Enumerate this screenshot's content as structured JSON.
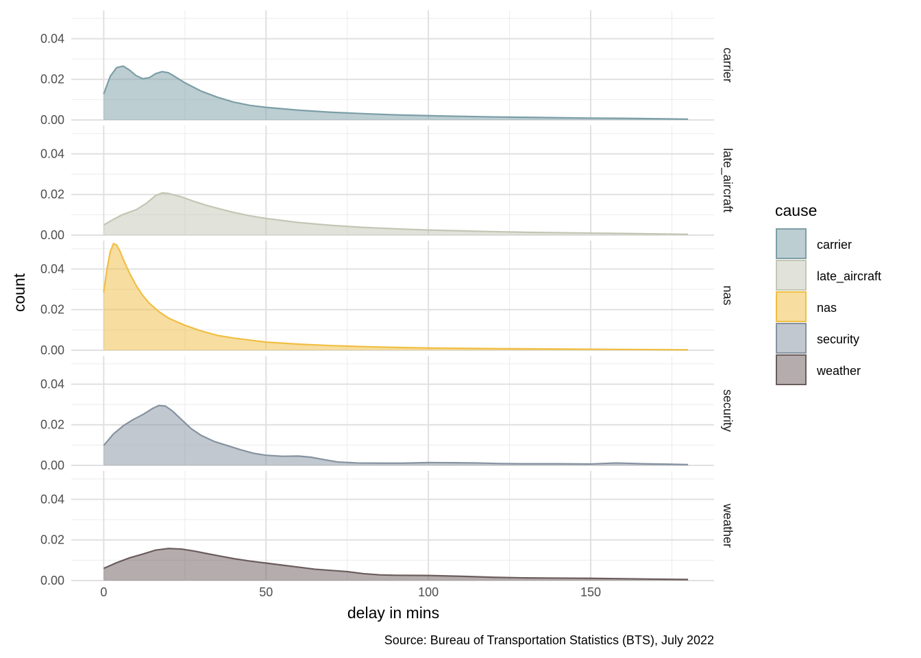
{
  "chart_data": {
    "type": "area",
    "facet": "rows",
    "xlabel": "delay in mins",
    "ylabel": "count",
    "caption": "Source: Bureau of Transportation Statistics (BTS), July 2022",
    "legend_title": "cause",
    "legend_position": "right",
    "grid": true,
    "xlim": [
      -10,
      188
    ],
    "ylim": [
      0,
      0.054
    ],
    "x_ticks": [
      0,
      50,
      100,
      150
    ],
    "x_tick_labels": [
      "0",
      "50",
      "100",
      "150"
    ],
    "y_ticks": [
      0,
      0.02,
      0.04
    ],
    "y_tick_labels": [
      "0.00",
      "0.02",
      "0.04"
    ],
    "series": [
      {
        "name": "carrier",
        "color": "#7b9ea6",
        "points": [
          [
            0,
            0.0128
          ],
          [
            2,
            0.0215
          ],
          [
            4,
            0.0258
          ],
          [
            6,
            0.0265
          ],
          [
            8,
            0.0245
          ],
          [
            10,
            0.0218
          ],
          [
            12,
            0.0203
          ],
          [
            14,
            0.0208
          ],
          [
            16,
            0.0228
          ],
          [
            18,
            0.0238
          ],
          [
            20,
            0.0232
          ],
          [
            22,
            0.0213
          ],
          [
            25,
            0.0183
          ],
          [
            30,
            0.0142
          ],
          [
            35,
            0.0112
          ],
          [
            40,
            0.0088
          ],
          [
            45,
            0.0072
          ],
          [
            50,
            0.0062
          ],
          [
            60,
            0.0048
          ],
          [
            70,
            0.0038
          ],
          [
            80,
            0.0031
          ],
          [
            90,
            0.0025
          ],
          [
            100,
            0.0021
          ],
          [
            110,
            0.0018
          ],
          [
            120,
            0.0015
          ],
          [
            130,
            0.0013
          ],
          [
            140,
            0.0011
          ],
          [
            150,
            0.0009
          ],
          [
            160,
            0.0008
          ],
          [
            170,
            0.0006
          ],
          [
            180,
            0.0004
          ]
        ]
      },
      {
        "name": "late_aircraft",
        "color": "#c3c6b4",
        "points": [
          [
            0,
            0.005
          ],
          [
            3,
            0.0078
          ],
          [
            6,
            0.0102
          ],
          [
            10,
            0.0125
          ],
          [
            13,
            0.0155
          ],
          [
            16,
            0.0195
          ],
          [
            18,
            0.0208
          ],
          [
            20,
            0.0205
          ],
          [
            24,
            0.0188
          ],
          [
            28,
            0.0165
          ],
          [
            32,
            0.0145
          ],
          [
            36,
            0.0128
          ],
          [
            40,
            0.0112
          ],
          [
            45,
            0.0095
          ],
          [
            50,
            0.0082
          ],
          [
            60,
            0.0062
          ],
          [
            70,
            0.0048
          ],
          [
            80,
            0.0038
          ],
          [
            90,
            0.0031
          ],
          [
            100,
            0.0025
          ],
          [
            110,
            0.0021
          ],
          [
            120,
            0.0017
          ],
          [
            130,
            0.0014
          ],
          [
            140,
            0.0012
          ],
          [
            150,
            0.001
          ],
          [
            160,
            0.0008
          ],
          [
            170,
            0.0006
          ],
          [
            180,
            0.0004
          ]
        ]
      },
      {
        "name": "nas",
        "color": "#f0be42",
        "points": [
          [
            0,
            0.0285
          ],
          [
            1,
            0.04
          ],
          [
            2,
            0.0485
          ],
          [
            3,
            0.0525
          ],
          [
            4,
            0.0518
          ],
          [
            5,
            0.0488
          ],
          [
            6,
            0.0448
          ],
          [
            8,
            0.0378
          ],
          [
            10,
            0.0318
          ],
          [
            12,
            0.027
          ],
          [
            14,
            0.0232
          ],
          [
            17,
            0.019
          ],
          [
            20,
            0.0158
          ],
          [
            25,
            0.0123
          ],
          [
            30,
            0.0095
          ],
          [
            35,
            0.0073
          ],
          [
            40,
            0.006
          ],
          [
            45,
            0.005
          ],
          [
            50,
            0.004
          ],
          [
            60,
            0.003
          ],
          [
            70,
            0.0023
          ],
          [
            80,
            0.0018
          ],
          [
            90,
            0.0014
          ],
          [
            100,
            0.0011
          ],
          [
            120,
            0.0008
          ],
          [
            140,
            0.0006
          ],
          [
            160,
            0.0004
          ],
          [
            180,
            0.0002
          ]
        ]
      },
      {
        "name": "security",
        "color": "#8592a0",
        "points": [
          [
            0,
            0.0098
          ],
          [
            3,
            0.0155
          ],
          [
            6,
            0.0195
          ],
          [
            9,
            0.0225
          ],
          [
            12,
            0.025
          ],
          [
            15,
            0.028
          ],
          [
            17,
            0.0295
          ],
          [
            19,
            0.0292
          ],
          [
            21,
            0.027
          ],
          [
            24,
            0.0225
          ],
          [
            27,
            0.018
          ],
          [
            30,
            0.0148
          ],
          [
            34,
            0.0118
          ],
          [
            38,
            0.0098
          ],
          [
            42,
            0.0078
          ],
          [
            46,
            0.006
          ],
          [
            50,
            0.005
          ],
          [
            55,
            0.0045
          ],
          [
            60,
            0.0046
          ],
          [
            64,
            0.004
          ],
          [
            68,
            0.0028
          ],
          [
            72,
            0.0017
          ],
          [
            78,
            0.0012
          ],
          [
            85,
            0.0011
          ],
          [
            92,
            0.0011
          ],
          [
            100,
            0.0014
          ],
          [
            108,
            0.0013
          ],
          [
            115,
            0.0012
          ],
          [
            122,
            0.0009
          ],
          [
            130,
            0.0008
          ],
          [
            140,
            0.0008
          ],
          [
            150,
            0.0007
          ],
          [
            158,
            0.0012
          ],
          [
            166,
            0.0008
          ],
          [
            174,
            0.0006
          ],
          [
            180,
            0.0004
          ]
        ]
      },
      {
        "name": "weather",
        "color": "#6b5c5c",
        "points": [
          [
            0,
            0.006
          ],
          [
            4,
            0.0088
          ],
          [
            8,
            0.0112
          ],
          [
            12,
            0.013
          ],
          [
            16,
            0.015
          ],
          [
            20,
            0.0158
          ],
          [
            24,
            0.0155
          ],
          [
            28,
            0.0145
          ],
          [
            32,
            0.0132
          ],
          [
            36,
            0.012
          ],
          [
            40,
            0.0108
          ],
          [
            45,
            0.0096
          ],
          [
            50,
            0.0086
          ],
          [
            55,
            0.0076
          ],
          [
            60,
            0.0066
          ],
          [
            65,
            0.0056
          ],
          [
            70,
            0.005
          ],
          [
            75,
            0.0044
          ],
          [
            80,
            0.0034
          ],
          [
            85,
            0.0028
          ],
          [
            90,
            0.0026
          ],
          [
            100,
            0.0025
          ],
          [
            110,
            0.0021
          ],
          [
            120,
            0.0016
          ],
          [
            130,
            0.0013
          ],
          [
            140,
            0.0012
          ],
          [
            150,
            0.0011
          ],
          [
            160,
            0.0009
          ],
          [
            170,
            0.0007
          ],
          [
            180,
            0.0005
          ]
        ]
      }
    ]
  }
}
